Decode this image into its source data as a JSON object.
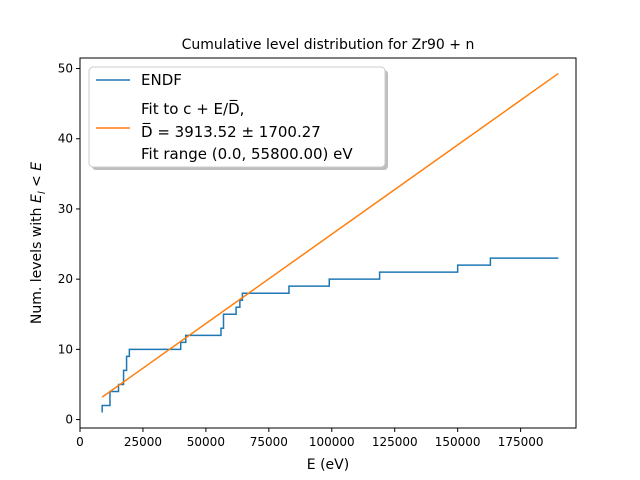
{
  "chart_data": {
    "type": "line",
    "title": "Cumulative level distribution for Zr90 + n",
    "xlabel": "E (eV)",
    "ylabel": "Num. levels with E_l < E",
    "xlim": [
      0,
      197000
    ],
    "ylim": [
      -1.2,
      51.5
    ],
    "xticks": [
      0,
      25000,
      50000,
      75000,
      100000,
      125000,
      150000,
      175000
    ],
    "xtick_labels": [
      "0",
      "25000",
      "50000",
      "75000",
      "100000",
      "125000",
      "150000",
      "175000"
    ],
    "yticks": [
      0,
      10,
      20,
      30,
      40,
      50
    ],
    "ytick_labels": [
      "0",
      "10",
      "20",
      "30",
      "40",
      "50"
    ],
    "grid": false,
    "legend_placement": "top-left",
    "series": [
      {
        "name": "ENDF",
        "color": "#1f77b4",
        "drawstyle": "steps",
        "x": [
          8800,
          8800,
          11900,
          11900,
          15300,
          15300,
          17300,
          17300,
          18500,
          18500,
          19600,
          19600,
          40000,
          40000,
          42000,
          42000,
          56000,
          56000,
          57000,
          57000,
          62000,
          62000,
          63500,
          63500,
          64500,
          64500,
          65600,
          65600,
          83000,
          83000,
          99000,
          99000,
          119000,
          119000,
          150000,
          150000,
          163000,
          163000,
          190000
        ],
        "y": [
          1,
          2,
          2,
          4,
          4,
          5,
          5,
          7,
          7,
          9,
          9,
          10,
          10,
          11,
          11,
          12,
          12,
          13,
          13,
          15,
          15,
          16,
          16,
          17,
          17,
          18,
          18,
          18,
          18,
          19,
          19,
          20,
          20,
          21,
          21,
          22,
          22,
          23,
          23
        ]
      },
      {
        "name": "Fit",
        "color": "#ff7f0e",
        "x": [
          8800,
          190000
        ],
        "y": [
          3.2,
          49.3
        ]
      }
    ],
    "legend": {
      "entry1": "ENDF",
      "entry2_line1": "Fit to c + E/D̅,",
      "entry2_line2": "D̅ = 3913.52 ± 1700.27",
      "entry2_line3": "Fit range (0.0, 55800.00) eV"
    },
    "ylabel_parts": {
      "prefix": "Num. levels with ",
      "E": "E",
      "sub": "l",
      "lt": " < ",
      "E2": "E"
    }
  }
}
